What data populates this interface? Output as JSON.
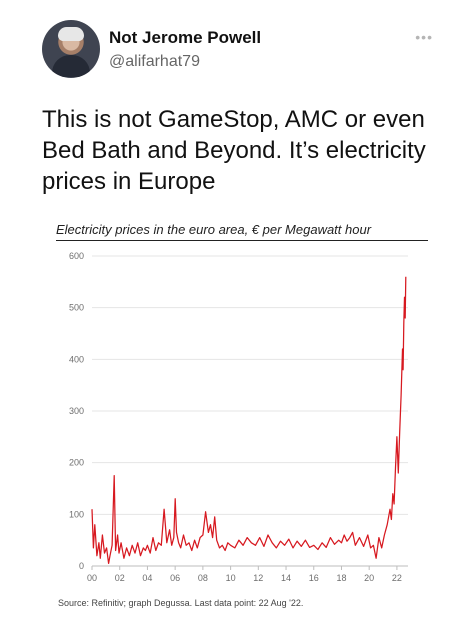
{
  "tweet": {
    "display_name": "Not Jerome Powell",
    "handle": "@alifarhat79",
    "text": "This is not GameStop, AMC or even Bed Bath and Beyond. It’s electricity prices in Europe",
    "more_icon": "more-horizontal-icon"
  },
  "chart_data": {
    "type": "line",
    "title": "Electricity prices in the euro area, € per Megawatt hour",
    "source": "Source: Refinitiv; graph Degussa. Last data point: 22 Aug '22.",
    "ylim": [
      0,
      600
    ],
    "xlim": [
      2000,
      2022.8
    ],
    "y_ticks": [
      0,
      100,
      200,
      300,
      400,
      500,
      600
    ],
    "x_tick_labels": [
      "00",
      "02",
      "04",
      "06",
      "08",
      "10",
      "12",
      "14",
      "16",
      "18",
      "20",
      "22"
    ],
    "grid": "horizontal",
    "color": "#d71920",
    "series": [
      {
        "x": [
          2000.0,
          2000.1,
          2000.2,
          2000.35,
          2000.5,
          2000.6,
          2000.75,
          2000.9,
          2001.05,
          2001.2,
          2001.3,
          2001.45,
          2001.6,
          2001.7,
          2001.85,
          2001.95,
          2002.1,
          2002.3,
          2002.5,
          2002.7,
          2002.9,
          2003.1,
          2003.3,
          2003.5,
          2003.7,
          2003.85,
          2004.0,
          2004.2,
          2004.4,
          2004.6,
          2004.8,
          2005.0,
          2005.2,
          2005.4,
          2005.6,
          2005.75,
          2005.9,
          2006.0,
          2006.1,
          2006.25,
          2006.4,
          2006.6,
          2006.8,
          2007.0,
          2007.2,
          2007.4,
          2007.6,
          2007.8,
          2008.0,
          2008.2,
          2008.4,
          2008.55,
          2008.7,
          2008.85,
          2009.0,
          2009.2,
          2009.4,
          2009.6,
          2009.8,
          2010.0,
          2010.3,
          2010.6,
          2010.9,
          2011.2,
          2011.5,
          2011.8,
          2012.1,
          2012.4,
          2012.7,
          2013.0,
          2013.3,
          2013.6,
          2013.9,
          2014.2,
          2014.5,
          2014.8,
          2015.1,
          2015.4,
          2015.7,
          2016.0,
          2016.3,
          2016.6,
          2016.9,
          2017.2,
          2017.5,
          2017.8,
          2018.0,
          2018.2,
          2018.4,
          2018.6,
          2018.8,
          2019.0,
          2019.3,
          2019.6,
          2019.9,
          2020.1,
          2020.3,
          2020.5,
          2020.7,
          2020.9,
          2021.1,
          2021.3,
          2021.5,
          2021.6,
          2021.7,
          2021.8,
          2021.9,
          2022.0,
          2022.1,
          2022.2,
          2022.3,
          2022.4,
          2022.45,
          2022.5,
          2022.55,
          2022.6,
          2022.64
        ],
        "y": [
          110,
          35,
          80,
          20,
          45,
          15,
          60,
          25,
          35,
          5,
          20,
          40,
          175,
          30,
          60,
          25,
          45,
          15,
          35,
          20,
          40,
          25,
          45,
          20,
          35,
          30,
          40,
          25,
          55,
          30,
          45,
          40,
          110,
          45,
          70,
          40,
          55,
          130,
          65,
          45,
          35,
          60,
          40,
          45,
          30,
          50,
          35,
          55,
          60,
          105,
          65,
          80,
          55,
          95,
          50,
          35,
          40,
          30,
          45,
          40,
          35,
          50,
          40,
          55,
          45,
          40,
          55,
          38,
          60,
          45,
          35,
          48,
          40,
          52,
          35,
          48,
          38,
          50,
          36,
          40,
          32,
          45,
          36,
          55,
          42,
          50,
          45,
          60,
          48,
          55,
          65,
          40,
          55,
          38,
          60,
          35,
          40,
          15,
          55,
          35,
          60,
          80,
          110,
          90,
          140,
          120,
          190,
          250,
          180,
          260,
          330,
          420,
          380,
          470,
          520,
          480,
          560
        ]
      }
    ]
  }
}
